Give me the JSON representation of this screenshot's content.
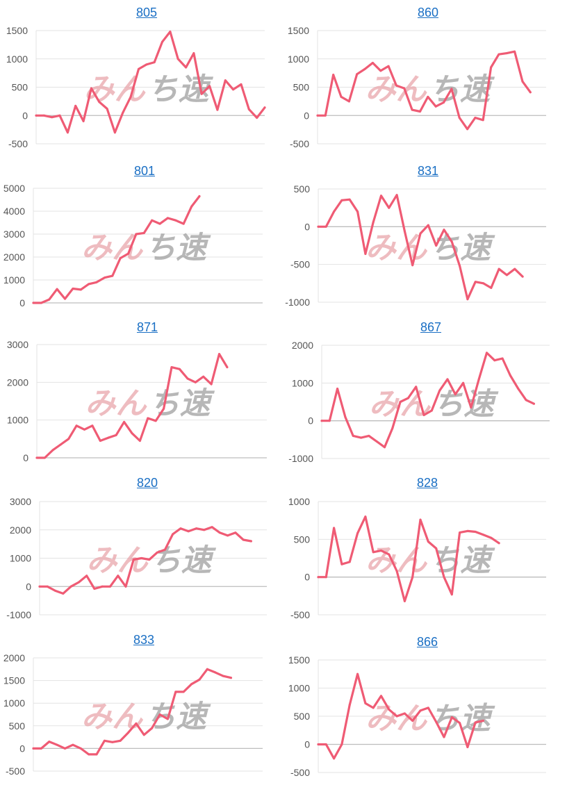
{
  "watermark": {
    "part1": "みん",
    "part2": "ち速"
  },
  "colors": {
    "line": "#ef5b74",
    "grid": "#e3e3e3",
    "zero": "#bdbdbd",
    "title": "#1a6fc4"
  },
  "chart_data": [
    {
      "type": "line",
      "title": "805",
      "yticks": [
        1500,
        1000,
        500,
        0,
        -500
      ],
      "ylim": [
        -500,
        1500
      ],
      "values": [
        0,
        0,
        -30,
        0,
        -300,
        170,
        -100,
        480,
        240,
        120,
        -300,
        50,
        330,
        820,
        900,
        940,
        1300,
        1480,
        1000,
        850,
        1100,
        380,
        520,
        100,
        620,
        460,
        550,
        110,
        -40,
        140
      ]
    },
    {
      "type": "line",
      "title": "860",
      "yticks": [
        1500,
        1000,
        500,
        0,
        -500
      ],
      "ylim": [
        -500,
        1500
      ],
      "values": [
        0,
        0,
        720,
        330,
        250,
        730,
        820,
        930,
        790,
        870,
        530,
        480,
        100,
        70,
        330,
        160,
        230,
        470,
        -40,
        -240,
        -40,
        -80,
        850,
        1080,
        1100,
        1130,
        600,
        410
      ]
    },
    {
      "type": "line",
      "title": "801",
      "yticks": [
        5000,
        4000,
        3000,
        2000,
        1000,
        0
      ],
      "ylim": [
        0,
        5000
      ],
      "values": [
        0,
        0,
        150,
        600,
        180,
        620,
        580,
        820,
        900,
        1100,
        1180,
        1950,
        2150,
        3000,
        3050,
        3600,
        3450,
        3700,
        3600,
        3450,
        4200,
        4650
      ]
    },
    {
      "type": "line",
      "title": "831",
      "yticks": [
        500,
        0,
        -500,
        -1000
      ],
      "ylim": [
        -1000,
        500
      ],
      "values": [
        0,
        0,
        200,
        350,
        360,
        200,
        -360,
        60,
        410,
        250,
        420,
        -60,
        -510,
        -90,
        20,
        -250,
        -40,
        -200,
        -520,
        -960,
        -730,
        -750,
        -810,
        -560,
        -640,
        -560,
        -660
      ]
    },
    {
      "type": "line",
      "title": "871",
      "yticks": [
        3000,
        2000,
        1000,
        0
      ],
      "ylim": [
        0,
        3000
      ],
      "values": [
        0,
        0,
        200,
        350,
        500,
        850,
        750,
        850,
        450,
        530,
        600,
        950,
        650,
        450,
        1050,
        980,
        1300,
        2400,
        2350,
        2100,
        2000,
        2150,
        1950,
        2750,
        2400
      ]
    },
    {
      "type": "line",
      "title": "867",
      "yticks": [
        2000,
        1000,
        0,
        -1000
      ],
      "ylim": [
        -1000,
        2000
      ],
      "values": [
        0,
        0,
        850,
        100,
        -400,
        -450,
        -400,
        -550,
        -700,
        -200,
        500,
        600,
        900,
        150,
        270,
        800,
        1100,
        700,
        1000,
        350,
        1100,
        1800,
        1600,
        1650,
        1200,
        850,
        550,
        450
      ]
    },
    {
      "type": "line",
      "title": "820",
      "yticks": [
        3000,
        2000,
        1000,
        0,
        -1000
      ],
      "ylim": [
        -1000,
        3000
      ],
      "values": [
        0,
        0,
        -150,
        -250,
        0,
        150,
        380,
        -80,
        0,
        0,
        380,
        0,
        950,
        1000,
        950,
        1200,
        1300,
        1850,
        2050,
        1950,
        2050,
        2000,
        2100,
        1900,
        1800,
        1900,
        1650,
        1600
      ]
    },
    {
      "type": "line",
      "title": "828",
      "yticks": [
        1000,
        500,
        0,
        -500
      ],
      "ylim": [
        -500,
        1000
      ],
      "values": [
        0,
        0,
        650,
        170,
        200,
        580,
        800,
        330,
        350,
        300,
        80,
        -320,
        0,
        760,
        470,
        380,
        0,
        -230,
        590,
        610,
        600,
        560,
        520,
        450
      ]
    },
    {
      "type": "line",
      "title": "833",
      "yticks": [
        2000,
        1500,
        1000,
        500,
        0,
        -500
      ],
      "ylim": [
        -500,
        2000
      ],
      "values": [
        0,
        0,
        150,
        80,
        0,
        80,
        0,
        -130,
        -130,
        170,
        140,
        170,
        350,
        550,
        300,
        450,
        750,
        650,
        1250,
        1250,
        1420,
        1520,
        1750,
        1680,
        1600,
        1560
      ]
    },
    {
      "type": "line",
      "title": "866",
      "yticks": [
        1500,
        1000,
        500,
        0,
        -500
      ],
      "ylim": [
        -500,
        1500
      ],
      "values": [
        0,
        0,
        -250,
        0,
        700,
        1250,
        730,
        650,
        860,
        620,
        500,
        550,
        420,
        600,
        650,
        400,
        130,
        480,
        380,
        -50,
        390,
        420
      ]
    }
  ]
}
